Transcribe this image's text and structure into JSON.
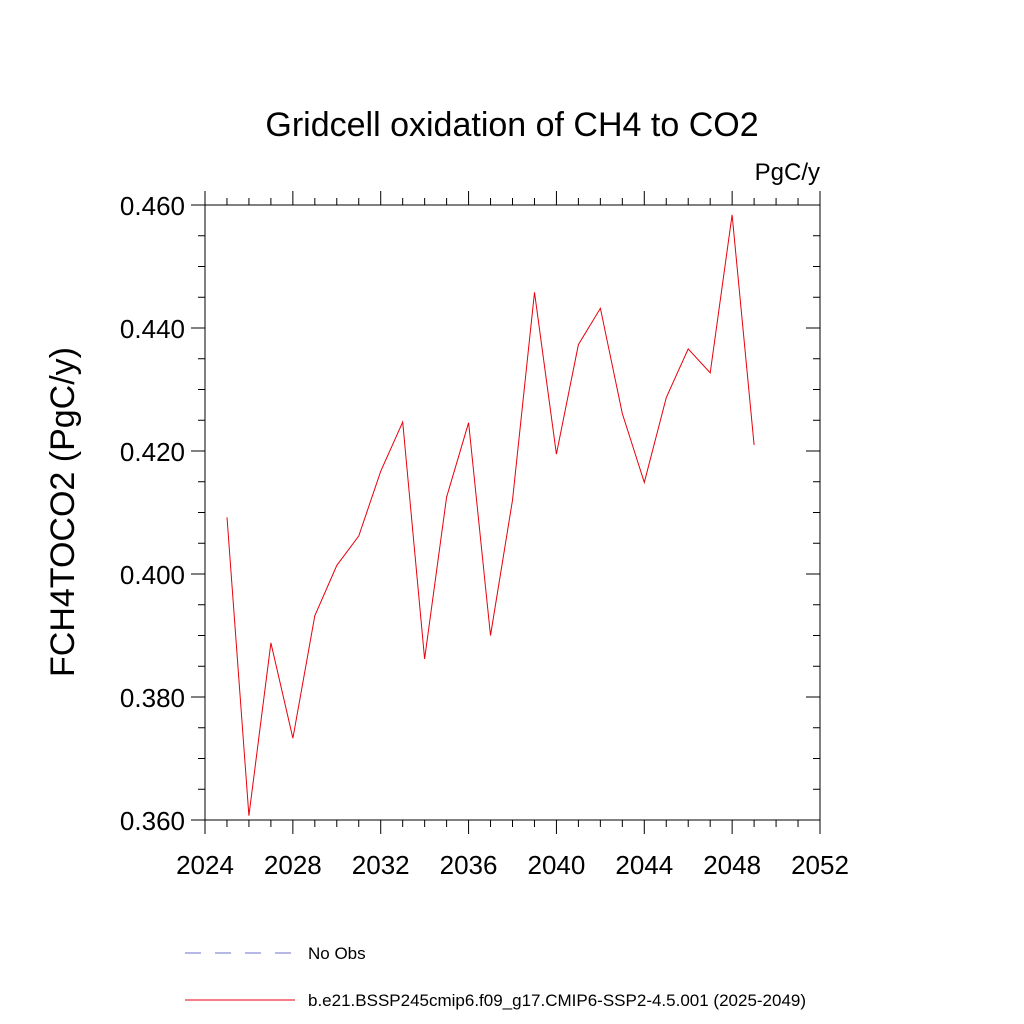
{
  "chart_data": {
    "type": "line",
    "title": "Gridcell oxidation of CH4 to CO2",
    "units_label": "PgC/y",
    "ylabel": "FCH4TOCO2  (PgC/y)",
    "xlabel": "",
    "xlim": [
      2024,
      2052
    ],
    "ylim": [
      0.36,
      0.46
    ],
    "x_ticks": [
      "2024",
      "2028",
      "2032",
      "2036",
      "2040",
      "2044",
      "2048",
      "2052"
    ],
    "y_ticks": [
      "0.360",
      "0.380",
      "0.400",
      "0.420",
      "0.440",
      "0.460"
    ],
    "series": [
      {
        "name": "b.e21.BSSP245cmip6.f09_g17.CMIP6-SSP2-4.5.001 (2025-2049)",
        "color": "#e8000b",
        "x": [
          2025,
          2026,
          2027,
          2028,
          2029,
          2030,
          2031,
          2032,
          2033,
          2034,
          2035,
          2036,
          2037,
          2038,
          2039,
          2040,
          2041,
          2042,
          2043,
          2044,
          2045,
          2046,
          2047,
          2048,
          2049
        ],
        "values": [
          0.4092,
          0.3607,
          0.3888,
          0.3733,
          0.3932,
          0.4014,
          0.4062,
          0.4167,
          0.4247,
          0.3862,
          0.4125,
          0.4246,
          0.39,
          0.412,
          0.4458,
          0.4195,
          0.4373,
          0.4432,
          0.4261,
          0.4149,
          0.4287,
          0.4366,
          0.4327,
          0.4584,
          0.421
        ]
      }
    ],
    "legend": {
      "placement": "bottom",
      "entries": [
        {
          "label": "No Obs",
          "style": "dashed",
          "color": "#6f6fd0"
        },
        {
          "label": "b.e21.BSSP245cmip6.f09_g17.CMIP6-SSP2-4.5.001 (2025-2049)",
          "style": "solid",
          "color": "#e8000b"
        }
      ]
    },
    "grid": false
  }
}
